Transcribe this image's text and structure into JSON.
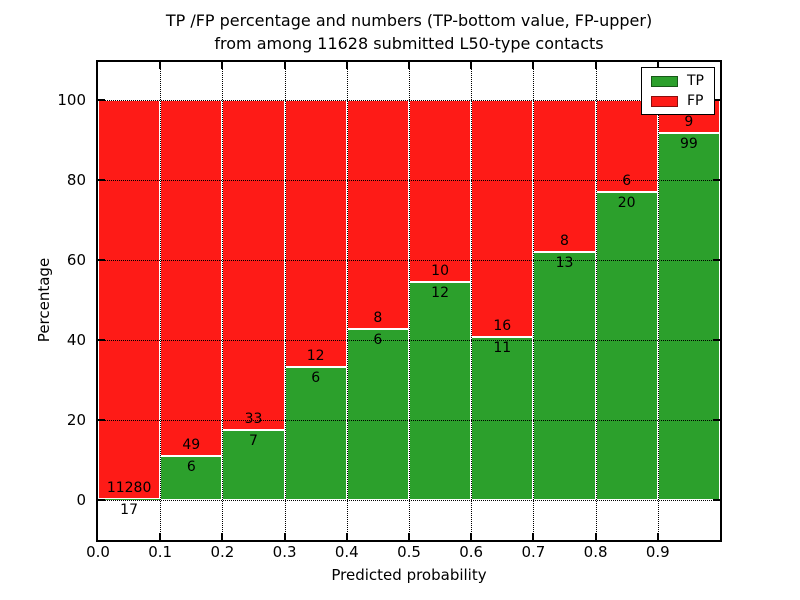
{
  "title": {
    "line1": "TP /FP percentage and numbers (TP-bottom value, FP-upper)",
    "line2": "from among 11628 submitted L50-type contacts"
  },
  "legend": {
    "items": [
      {
        "label": "TP",
        "color": "#2ca02c"
      },
      {
        "label": "FP",
        "color": "#fe1b17"
      }
    ]
  },
  "chart_data": {
    "type": "bar",
    "stacked": true,
    "normalized_to_percent": true,
    "title": "TP /FP percentage and numbers (TP-bottom value, FP-upper) from among 11628 submitted L50-type contacts",
    "xlabel": "Predicted probability",
    "ylabel": "Percentage",
    "xlim": [
      0.0,
      1.0
    ],
    "ylim": [
      -10,
      110
    ],
    "grid": "dotted",
    "legend_position": "upper right",
    "total_contacts": 11628,
    "bin_width": 0.1,
    "bin_starts": [
      0.0,
      0.1,
      0.2,
      0.3,
      0.4,
      0.5,
      0.6,
      0.7,
      0.8,
      0.9
    ],
    "x_tick_labels": [
      "0.0",
      "0.1",
      "0.2",
      "0.3",
      "0.4",
      "0.5",
      "0.6",
      "0.7",
      "0.8",
      "0.9"
    ],
    "y_ticks": [
      0,
      20,
      40,
      60,
      80,
      100
    ],
    "series": [
      {
        "name": "TP",
        "color": "#2ca02c",
        "counts": [
          17,
          6,
          7,
          6,
          6,
          12,
          11,
          13,
          20,
          99
        ],
        "pct": [
          0.15,
          10.91,
          17.5,
          33.33,
          42.86,
          54.55,
          40.74,
          61.9,
          76.92,
          91.67
        ]
      },
      {
        "name": "FP",
        "color": "#fe1b17",
        "counts": [
          11280,
          49,
          33,
          12,
          8,
          10,
          16,
          8,
          6,
          9
        ],
        "pct": [
          99.85,
          89.09,
          82.5,
          66.67,
          57.14,
          45.45,
          59.26,
          38.1,
          23.08,
          8.33
        ]
      }
    ]
  }
}
